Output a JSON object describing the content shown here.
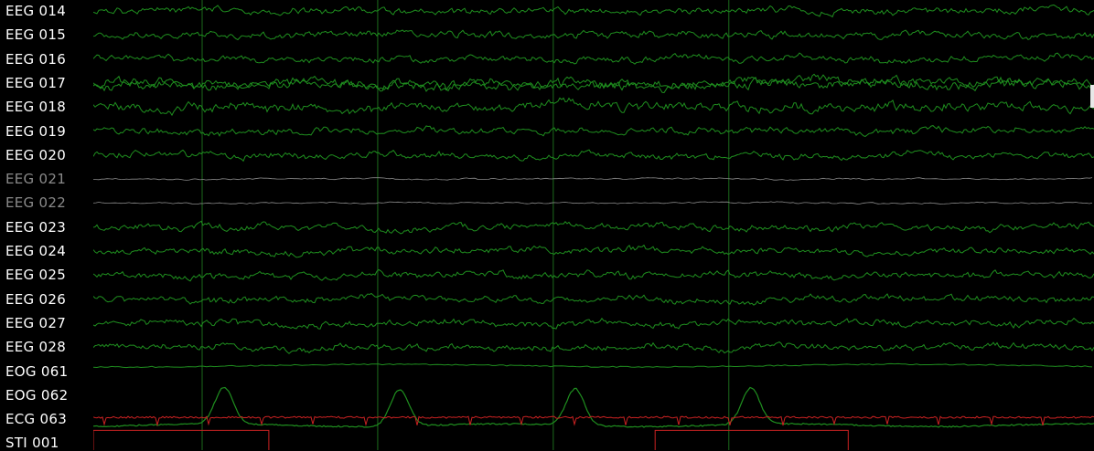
{
  "channels": [
    {
      "name": "EEG 014",
      "type": "eeg",
      "bad": false
    },
    {
      "name": "EEG 015",
      "type": "eeg",
      "bad": false
    },
    {
      "name": "EEG 016",
      "type": "eeg",
      "bad": false
    },
    {
      "name": "EEG 017",
      "type": "eeg",
      "bad": false
    },
    {
      "name": "EEG 018",
      "type": "eeg",
      "bad": false
    },
    {
      "name": "EEG 019",
      "type": "eeg",
      "bad": false
    },
    {
      "name": "EEG 020",
      "type": "eeg",
      "bad": false
    },
    {
      "name": "EEG 021",
      "type": "eeg",
      "bad": true
    },
    {
      "name": "EEG 022",
      "type": "eeg",
      "bad": true
    },
    {
      "name": "EEG 023",
      "type": "eeg",
      "bad": false
    },
    {
      "name": "EEG 024",
      "type": "eeg",
      "bad": false
    },
    {
      "name": "EEG 025",
      "type": "eeg",
      "bad": false
    },
    {
      "name": "EEG 026",
      "type": "eeg",
      "bad": false
    },
    {
      "name": "EEG 027",
      "type": "eeg",
      "bad": false
    },
    {
      "name": "EEG 028",
      "type": "eeg",
      "bad": false
    },
    {
      "name": "EOG 061",
      "type": "eog",
      "bad": false
    },
    {
      "name": "EOG 062",
      "type": "eog",
      "bad": false
    },
    {
      "name": "ECG 063",
      "type": "ecg",
      "bad": false
    },
    {
      "name": "STI 001",
      "type": "stim",
      "bad": false
    }
  ],
  "colors": {
    "background": "#000000",
    "eeg": "#1f8f1f",
    "bad_channel": "#8a8a8a",
    "ecg": "#cc2222",
    "stim": "#cc2222",
    "event_line": "#1c6b1c",
    "label": "#ffffff"
  },
  "event_markers": [
    2,
    3,
    4,
    5
  ],
  "stim_blocks": [
    {
      "start": 1,
      "end": 2
    },
    {
      "start": 4.2,
      "end": 5.3
    }
  ]
}
